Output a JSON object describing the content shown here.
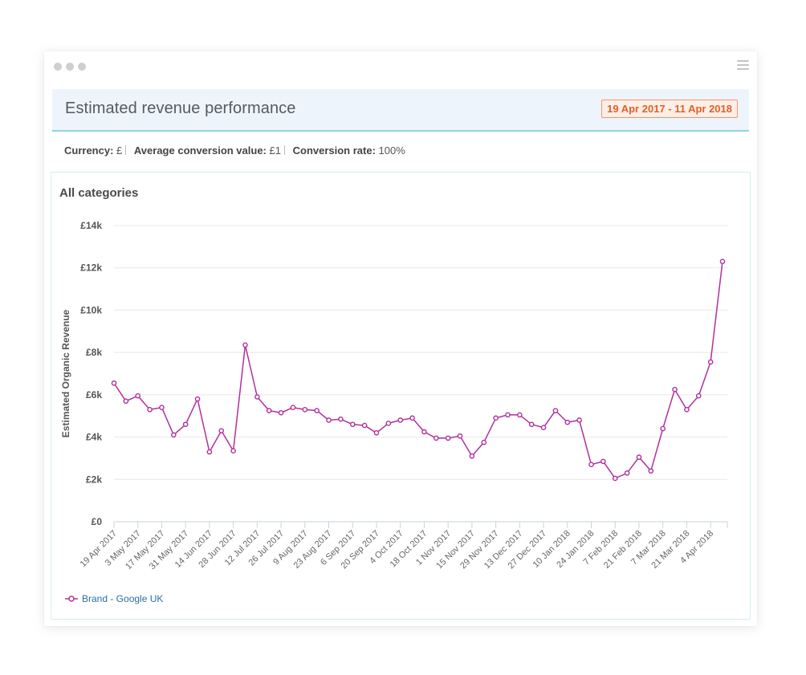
{
  "header": {
    "title": "Estimated revenue performance",
    "date_range": "19 Apr 2017 - 11 Apr 2018"
  },
  "info": {
    "currency_label": "Currency:",
    "currency_value": "£",
    "avg_label": "Average conversion value:",
    "avg_value": "£1",
    "rate_label": "Conversion rate:",
    "rate_value": "100%"
  },
  "colors": {
    "series": "#b0309c",
    "accent_border": "#8ed3e3",
    "badge": "#e1602a"
  },
  "chart_data": {
    "type": "line",
    "title": "All categories",
    "ylabel": "Estimated Organic Revenue",
    "xlabel": "",
    "ylim": [
      0,
      14000
    ],
    "y_ticks": [
      0,
      2000,
      4000,
      6000,
      8000,
      10000,
      12000,
      14000
    ],
    "y_tick_labels": [
      "£0",
      "£2k",
      "£4k",
      "£6k",
      "£8k",
      "£10k",
      "£12k",
      "£14k"
    ],
    "grid": true,
    "legend_position": "bottom-left",
    "x_tick_labels": [
      "19 Apr 2017",
      "3 May 2017",
      "17 May 2017",
      "31 May 2017",
      "14 Jun 2017",
      "28 Jun 2017",
      "12 Jul 2017",
      "26 Jul 2017",
      "9 Aug 2017",
      "23 Aug 2017",
      "6 Sep 2017",
      "20 Sep 2017",
      "4 Oct 2017",
      "18 Oct 2017",
      "1 Nov 2017",
      "15 Nov 2017",
      "29 Nov 2017",
      "13 Dec 2017",
      "27 Dec 2017",
      "10 Jan 2018",
      "24 Jan 2018",
      "7 Feb 2018",
      "21 Feb 2018",
      "7 Mar 2018",
      "21 Mar 2018",
      "4 Apr 2018"
    ],
    "series": [
      {
        "name": "Brand - Google UK",
        "values": [
          6550,
          5700,
          5950,
          5300,
          5400,
          4100,
          4600,
          5800,
          3300,
          4300,
          3350,
          8350,
          5900,
          5250,
          5150,
          5400,
          5300,
          5250,
          4800,
          4850,
          4600,
          4550,
          4200,
          4650,
          4800,
          4900,
          4250,
          3950,
          3950,
          4050,
          3100,
          3750,
          4900,
          5050,
          5050,
          4600,
          4450,
          5250,
          4700,
          4800,
          2700,
          2850,
          2050,
          2300,
          3050,
          2400,
          4400,
          6250,
          5300,
          5950,
          7550,
          12300
        ]
      }
    ]
  }
}
